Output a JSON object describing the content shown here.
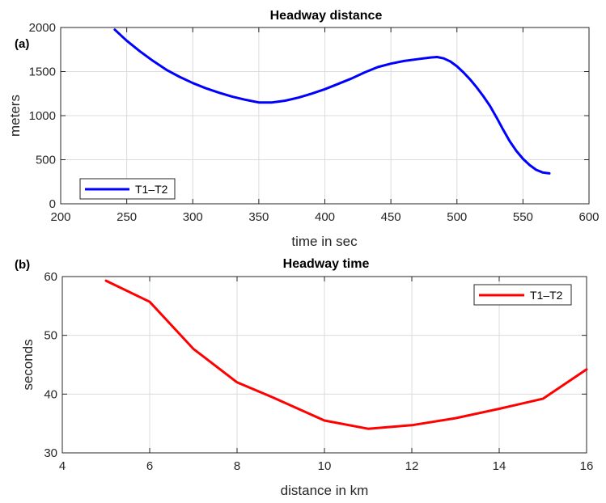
{
  "chart_data": [
    {
      "type": "line",
      "panel_label": "(a)",
      "title": "Headway distance",
      "xlabel": "time in sec",
      "ylabel": "meters",
      "xlim": [
        200,
        600
      ],
      "ylim": [
        0,
        2000
      ],
      "xticks": [
        200,
        250,
        300,
        350,
        400,
        450,
        500,
        550,
        600
      ],
      "yticks": [
        0,
        500,
        1000,
        1500,
        2000
      ],
      "grid": true,
      "legend": "bottom-left",
      "series": [
        {
          "name": "T1–T2",
          "color": "#0000ff",
          "x": [
            241,
            250,
            260,
            270,
            280,
            290,
            300,
            310,
            320,
            330,
            340,
            350,
            360,
            370,
            380,
            390,
            400,
            410,
            420,
            430,
            440,
            450,
            460,
            470,
            480,
            485,
            490,
            495,
            500,
            505,
            510,
            515,
            520,
            525,
            530,
            535,
            540,
            545,
            550,
            555,
            560,
            565,
            570
          ],
          "y": [
            1975,
            1850,
            1730,
            1620,
            1520,
            1440,
            1370,
            1310,
            1260,
            1215,
            1180,
            1150,
            1150,
            1170,
            1205,
            1250,
            1300,
            1360,
            1420,
            1490,
            1550,
            1590,
            1620,
            1640,
            1660,
            1665,
            1650,
            1615,
            1560,
            1490,
            1410,
            1320,
            1220,
            1110,
            980,
            840,
            710,
            600,
            510,
            440,
            385,
            355,
            345
          ]
        }
      ]
    },
    {
      "type": "line",
      "panel_label": "(b)",
      "title": "Headway time",
      "xlabel": "distance in km",
      "ylabel": "seconds",
      "xlim": [
        4,
        16
      ],
      "ylim": [
        30,
        60
      ],
      "xticks": [
        4,
        6,
        8,
        10,
        12,
        14,
        16
      ],
      "yticks": [
        30,
        40,
        50,
        60
      ],
      "grid": true,
      "legend": "top-right",
      "series": [
        {
          "name": "T1–T2",
          "color": "#ff0000",
          "x": [
            5,
            6,
            7,
            8,
            8.8,
            10,
            11,
            12,
            13,
            14,
            15,
            16
          ],
          "y": [
            59.3,
            55.7,
            47.7,
            42.0,
            39.5,
            35.5,
            34.1,
            34.7,
            35.9,
            37.5,
            39.2,
            44.2
          ]
        }
      ]
    }
  ]
}
